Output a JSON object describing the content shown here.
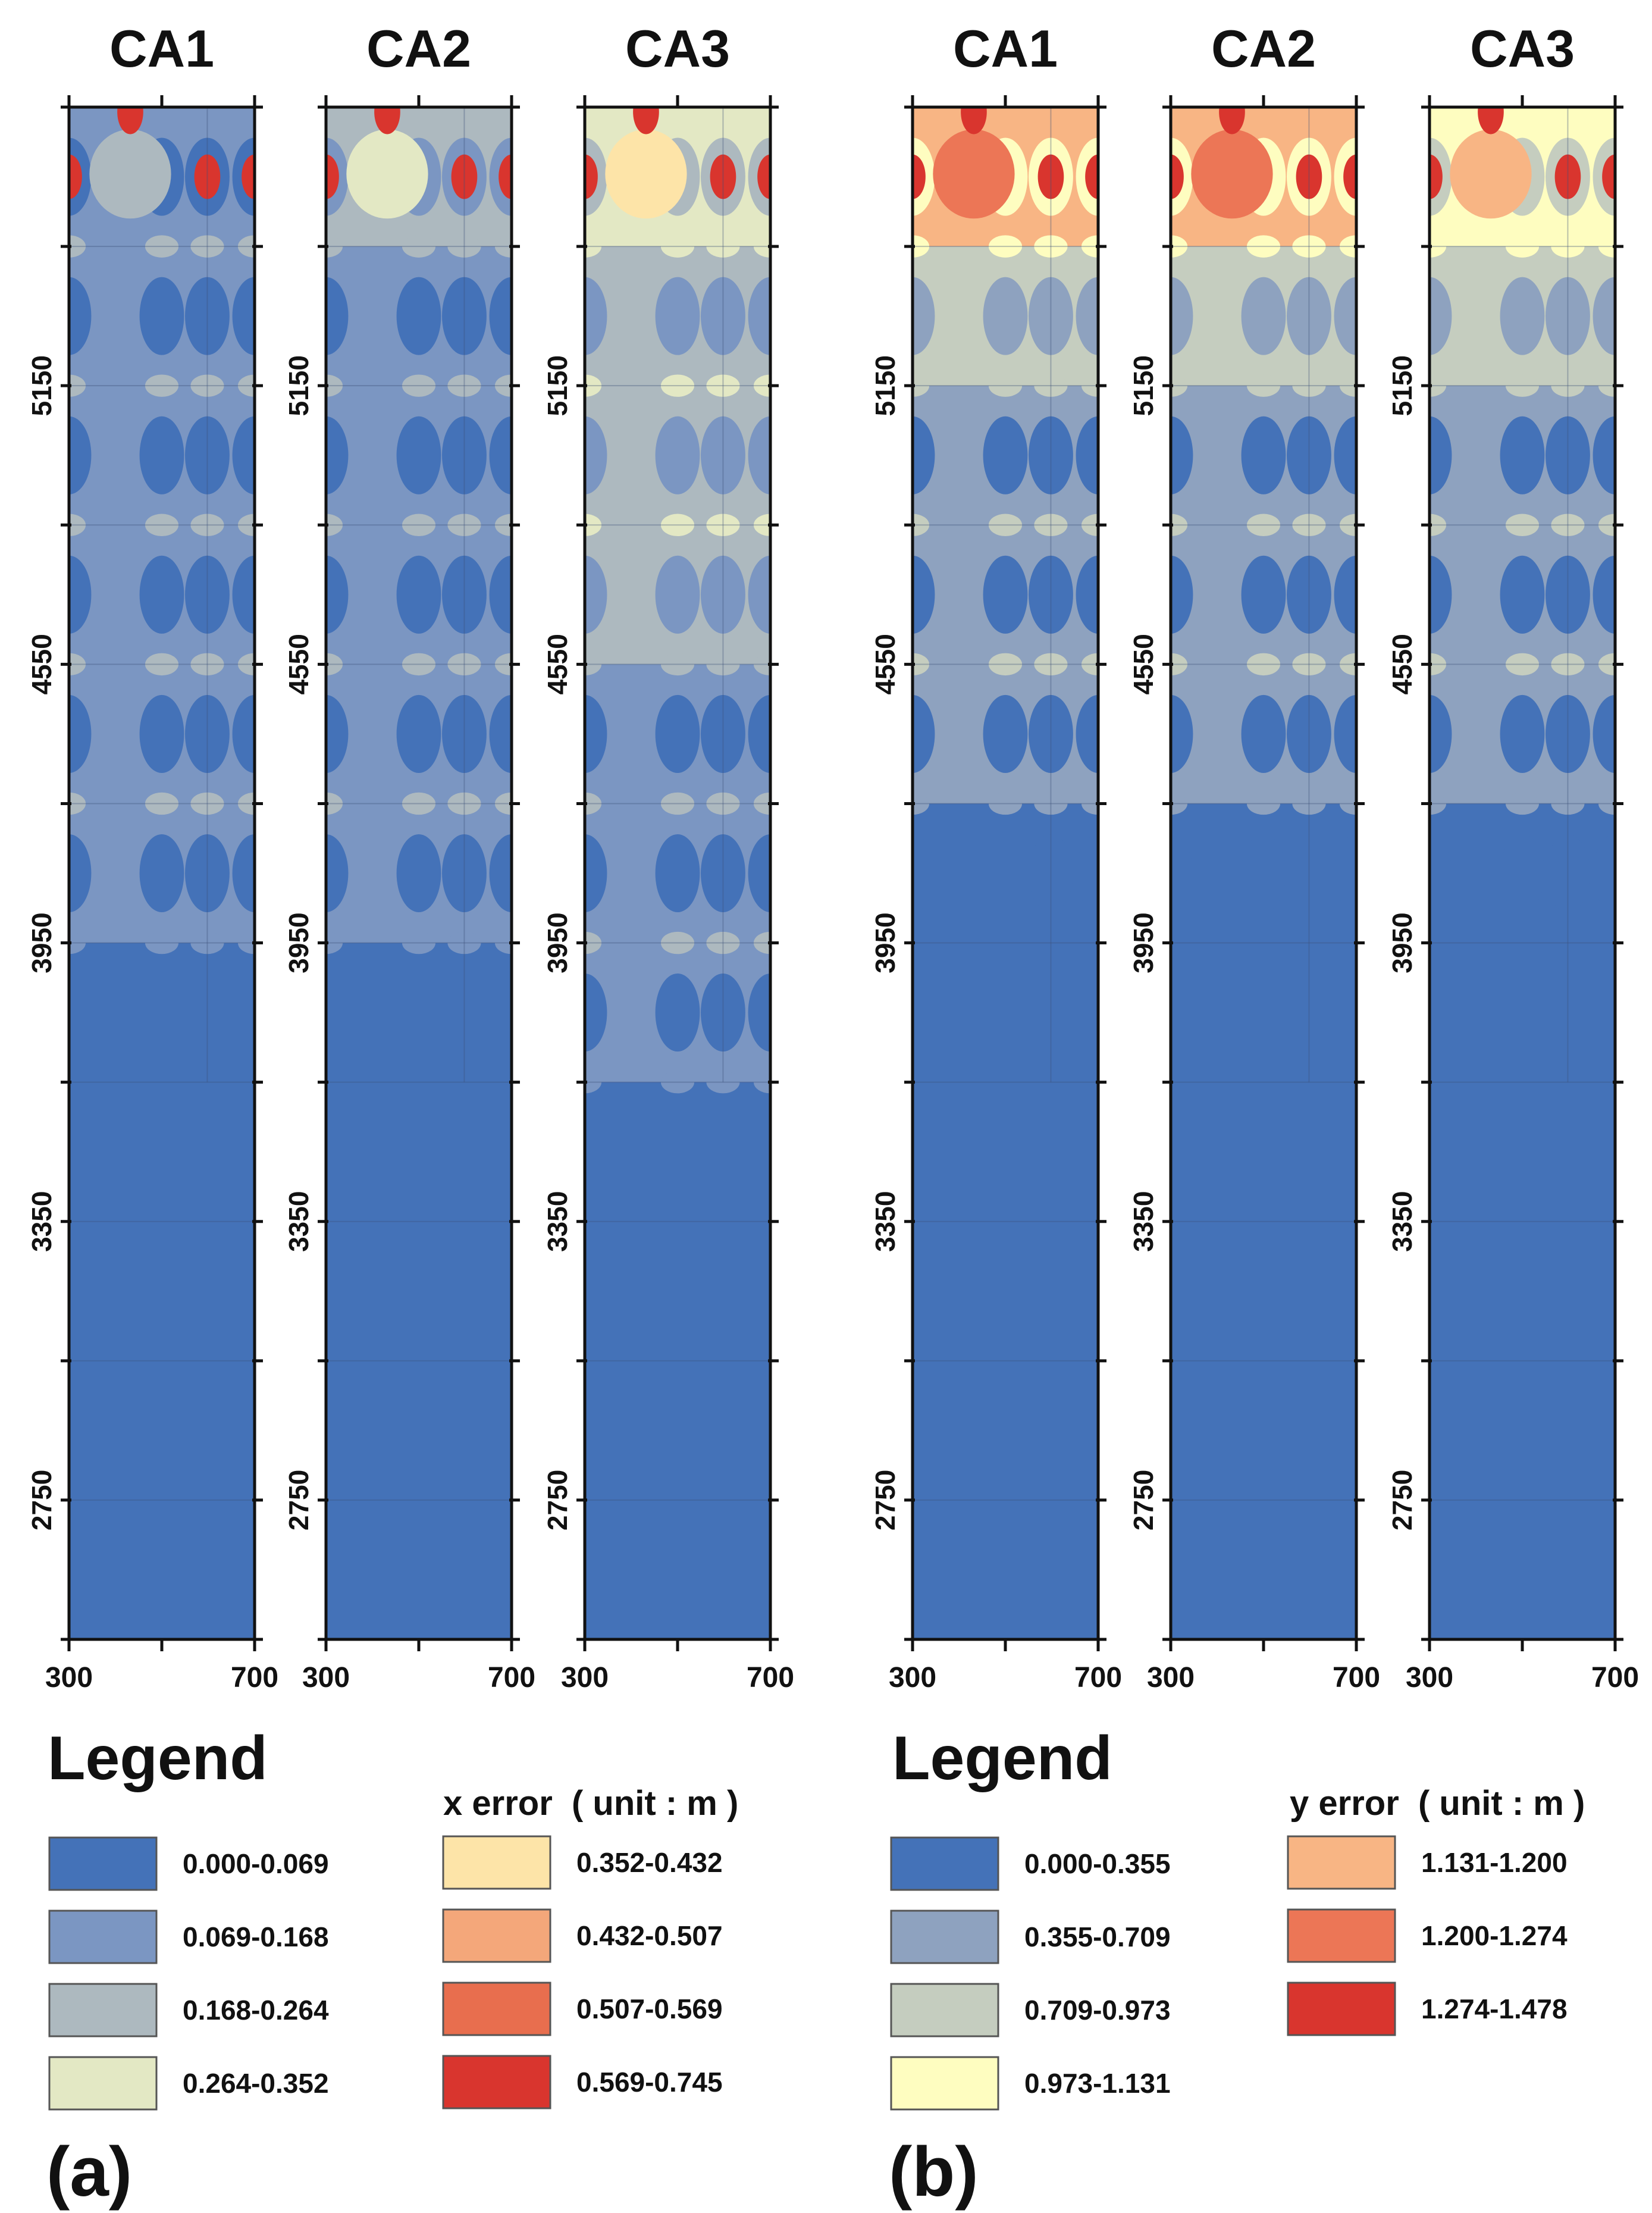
{
  "chart_data": [
    {
      "type": "heatmap",
      "figure_label": "(a)",
      "panels": [
        "CA1",
        "CA2",
        "CA3"
      ],
      "x_ticks": [
        "300",
        "700"
      ],
      "xlim": [
        300,
        700
      ],
      "y_ticks": [
        "5150",
        "4550",
        "3950",
        "3350",
        "2750"
      ],
      "ylim": [
        2450,
        5750
      ],
      "legend_title": "Legend",
      "unit_title": "x error  ( unit : m )",
      "colors": [
        "#4472b8",
        "#7b96c2",
        "#adb9bf",
        "#e3e8c4",
        "#fde4a8",
        "#f4a77a",
        "#e86e4e",
        "#d9352e"
      ],
      "legend": [
        {
          "label": "0.000-0.069",
          "color": "#4472b8"
        },
        {
          "label": "0.069-0.168",
          "color": "#7b96c2"
        },
        {
          "label": "0.168-0.264",
          "color": "#adb9bf"
        },
        {
          "label": "0.264-0.352",
          "color": "#e3e8c4"
        },
        {
          "label": "0.352-0.432",
          "color": "#fde4a8"
        },
        {
          "label": "0.432-0.507",
          "color": "#f4a77a"
        },
        {
          "label": "0.507-0.569",
          "color": "#e86e4e"
        },
        {
          "label": "0.569-0.745",
          "color": "#d9352e"
        }
      ],
      "panel_band_levels": {
        "CA1": [
          1,
          1,
          1,
          1,
          1,
          1,
          0,
          0,
          0,
          0,
          0
        ],
        "CA2": [
          2,
          1,
          1,
          1,
          1,
          1,
          0,
          0,
          0,
          0,
          0
        ],
        "CA3": [
          3,
          2,
          2,
          2,
          1,
          1,
          1,
          0,
          0,
          0,
          0
        ]
      }
    },
    {
      "type": "heatmap",
      "figure_label": "(b)",
      "panels": [
        "CA1",
        "CA2",
        "CA3"
      ],
      "x_ticks": [
        "300",
        "700"
      ],
      "xlim": [
        300,
        700
      ],
      "y_ticks": [
        "5150",
        "4550",
        "3950",
        "3350",
        "2750"
      ],
      "ylim": [
        2450,
        5750
      ],
      "legend_title": "Legend",
      "unit_title": "y error  ( unit : m )",
      "colors": [
        "#4472b8",
        "#8ea2bf",
        "#c5cdbf",
        "#fefdc0",
        "#f8b584",
        "#ec7656",
        "#d9352e"
      ],
      "legend": [
        {
          "label": "0.000-0.355",
          "color": "#4472b8"
        },
        {
          "label": "0.355-0.709",
          "color": "#8ea2bf"
        },
        {
          "label": "0.709-0.973",
          "color": "#c5cdbf"
        },
        {
          "label": "0.973-1.131",
          "color": "#fefdc0"
        },
        {
          "label": "1.131-1.200",
          "color": "#f8b584"
        },
        {
          "label": "1.200-1.274",
          "color": "#ec7656"
        },
        {
          "label": "1.274-1.478",
          "color": "#d9352e"
        }
      ],
      "panel_band_levels": {
        "CA1": [
          4,
          2,
          1,
          1,
          1,
          0,
          0,
          0,
          0,
          0,
          0
        ],
        "CA2": [
          4,
          2,
          1,
          1,
          1,
          0,
          0,
          0,
          0,
          0,
          0
        ],
        "CA3": [
          3,
          2,
          1,
          1,
          1,
          0,
          0,
          0,
          0,
          0,
          0
        ]
      }
    }
  ]
}
